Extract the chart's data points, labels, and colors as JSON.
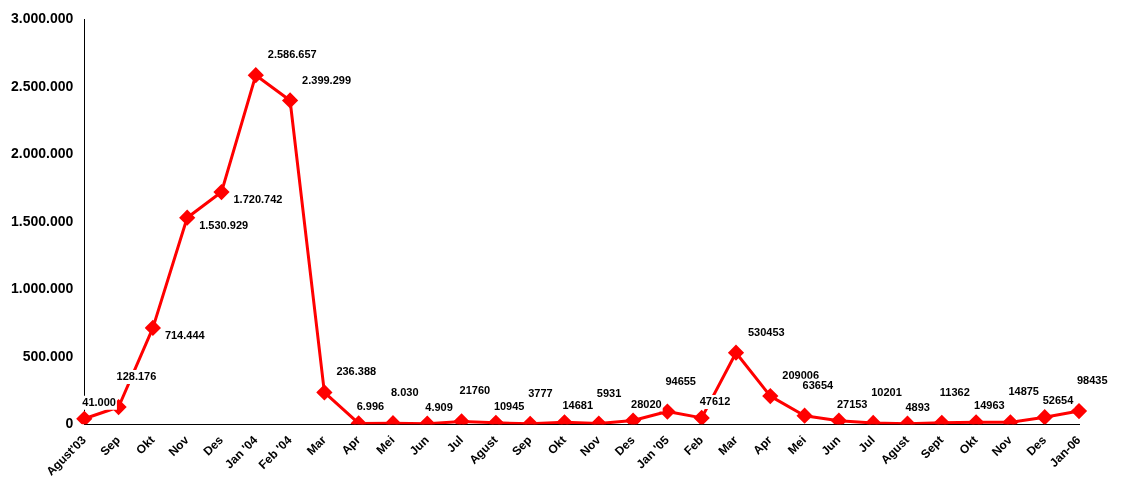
{
  "chart_data": {
    "type": "line",
    "categories": [
      "Agust'03",
      "Sep",
      "Okt",
      "Nov",
      "Des",
      "Jan '04",
      "Feb '04",
      "Mar",
      "Apr",
      "Mei",
      "Jun",
      "Jul",
      "Agust",
      "Sep",
      "Okt",
      "Nov",
      "Des",
      "Jan '05",
      "Feb",
      "Mar",
      "Apr",
      "Mei",
      "Jun",
      "Jul",
      "Agust",
      "Sept",
      "Okt",
      "Nov",
      "Des",
      "Jan-06"
    ],
    "series": [
      {
        "color": "#ff0000",
        "values": [
          41000,
          128176,
          714444,
          1530929,
          1720742,
          2586657,
          2399299,
          236388,
          6996,
          8030,
          4909,
          21760,
          10945,
          3777,
          14681,
          5931,
          28020,
          94655,
          47612,
          530453,
          209006,
          63654,
          27153,
          10201,
          4893,
          11362,
          14963,
          14875,
          52654,
          98435
        ],
        "value_labels": [
          "41.000",
          "128.176",
          "714.444",
          "1.530.929",
          "1.720.742",
          "2.586.657",
          "2.399.299",
          "236.388",
          "6.996",
          "8.030",
          "4.909",
          "21760",
          "10945",
          "3777",
          "14681",
          "5931",
          "28020",
          "94655",
          "47612",
          "530453",
          "209006",
          "63654",
          "27153",
          "10201",
          "4893",
          "11362",
          "14963",
          "14875",
          "52654",
          "98435"
        ]
      }
    ],
    "ylim": [
      0,
      3000000
    ],
    "yticks": [
      {
        "value": 0,
        "label": "0"
      },
      {
        "value": 500000,
        "label": "500.000"
      },
      {
        "value": 1000000,
        "label": "1.000.000"
      },
      {
        "value": 1500000,
        "label": "1.500.000"
      },
      {
        "value": 2000000,
        "label": "2.000.000"
      },
      {
        "value": 2500000,
        "label": "2.500.000"
      },
      {
        "value": 3000000,
        "label": "3.000.000"
      }
    ],
    "grid": false,
    "legend": false,
    "marker": "diamond",
    "line_style": "solid"
  }
}
